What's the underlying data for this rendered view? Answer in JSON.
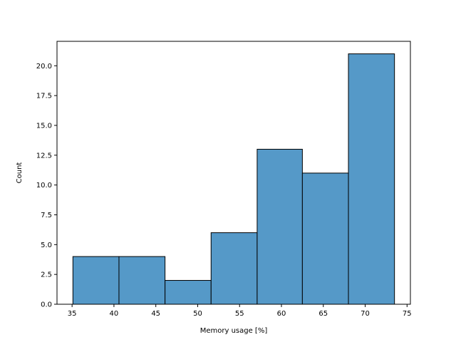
{
  "chart_data": {
    "type": "bar",
    "subtype": "histogram",
    "bins": [
      {
        "x0": 35.1,
        "x1": 40.6,
        "count": 4
      },
      {
        "x0": 40.6,
        "x1": 46.1,
        "count": 4
      },
      {
        "x0": 46.1,
        "x1": 51.6,
        "count": 2
      },
      {
        "x0": 51.6,
        "x1": 57.1,
        "count": 6
      },
      {
        "x0": 57.1,
        "x1": 62.5,
        "count": 13
      },
      {
        "x0": 62.5,
        "x1": 68.0,
        "count": 11
      },
      {
        "x0": 68.0,
        "x1": 73.5,
        "count": 21
      }
    ],
    "xlabel": "Memory usage [%]",
    "ylabel": "Count",
    "xlim": [
      33.2,
      75.4
    ],
    "ylim": [
      0,
      22.05
    ],
    "xticks": [
      "35",
      "40",
      "45",
      "50",
      "55",
      "60",
      "65",
      "70",
      "75"
    ],
    "xtick_values": [
      35,
      40,
      45,
      50,
      55,
      60,
      65,
      70,
      75
    ],
    "yticks": [
      "0.0",
      "2.5",
      "5.0",
      "7.5",
      "10.0",
      "12.5",
      "15.0",
      "17.5",
      "20.0"
    ],
    "ytick_values": [
      0,
      2.5,
      5,
      7.5,
      10,
      12.5,
      15,
      17.5,
      20
    ],
    "bar_color": "#5599c8",
    "edge_color": "#000000",
    "grid": false,
    "legend": false
  }
}
